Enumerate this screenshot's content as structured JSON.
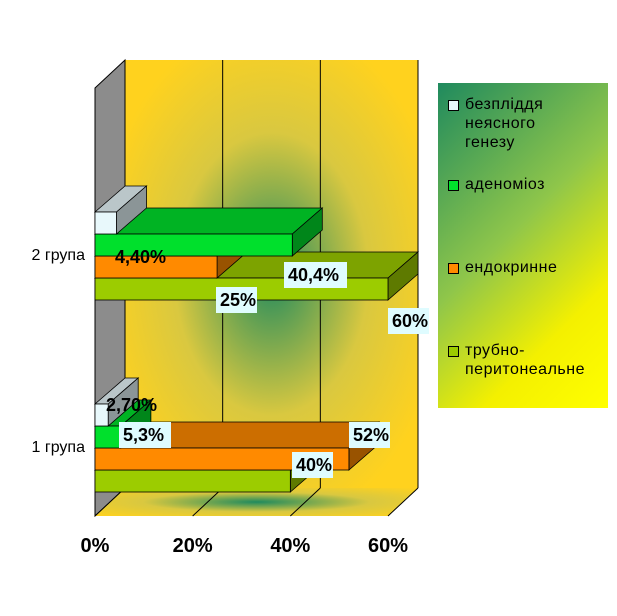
{
  "chart_data": {
    "type": "bar",
    "orientation": "horizontal",
    "categories": [
      "1 група",
      "2 група"
    ],
    "series": [
      {
        "name": "безпліддя неясного генезу",
        "values": [
          2.7,
          4.4
        ],
        "labels": [
          "2,70%",
          "4,40%"
        ],
        "color": "#e8f8fb"
      },
      {
        "name": "аденоміоз",
        "values": [
          5.3,
          40.4
        ],
        "labels": [
          "5,3%",
          "40,4%"
        ],
        "color": "#00e02c"
      },
      {
        "name": "ендокринне",
        "values": [
          52,
          25
        ],
        "labels": [
          "52%",
          "25%"
        ],
        "color": "#ff8a00"
      },
      {
        "name": "трубно-перитонеальне",
        "values": [
          40,
          60
        ],
        "labels": [
          "40%",
          "60%"
        ],
        "color": "#9ccc00"
      }
    ],
    "x_ticks": [
      "0%",
      "20%",
      "40%",
      "60%"
    ],
    "xlim": [
      0,
      60
    ],
    "legend_position": "right",
    "grid": true
  },
  "legend": [
    {
      "label": "безпліддя\nнеясного\nгенезу",
      "color": "#e8f8fb"
    },
    {
      "label": "аденоміоз",
      "color": "#00e02c"
    },
    {
      "label": "ендокринне",
      "color": "#ff8a00"
    },
    {
      "label": "трубно-\nперитонеальне",
      "color": "#9ccc00"
    }
  ]
}
